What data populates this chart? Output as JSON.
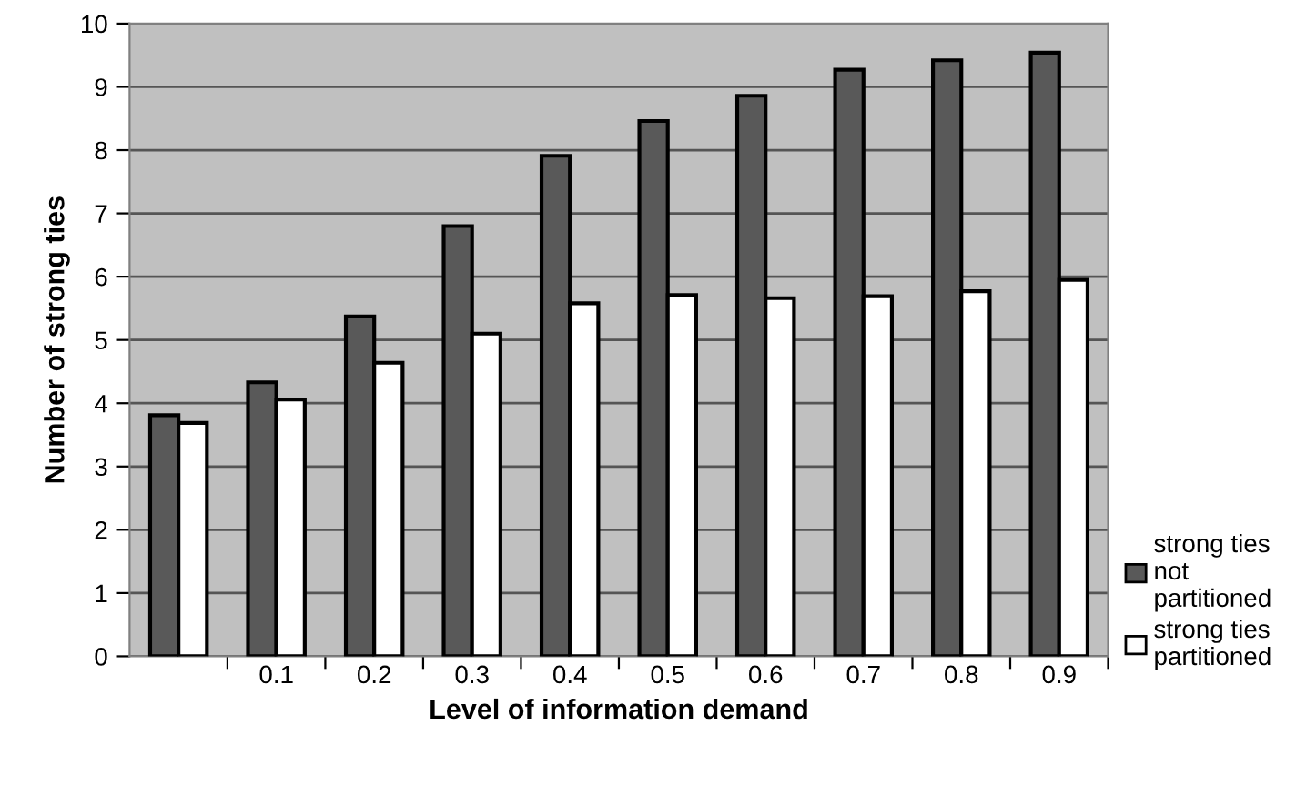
{
  "chart_data": {
    "type": "bar",
    "xlabel": "Level of information demand",
    "ylabel": "Number of strong ties",
    "categories": [
      null,
      "0.1",
      "0.2",
      "0.3",
      "0.4",
      "0.5",
      "0.6",
      "0.7",
      "0.8",
      "0.9"
    ],
    "series": [
      {
        "name": "strong ties\nnot\npartitioned",
        "color": "#595959",
        "values": [
          3.81,
          4.33,
          5.37,
          6.8,
          7.91,
          8.46,
          8.86,
          9.27,
          9.42,
          9.54
        ]
      },
      {
        "name": "strong ties\npartitioned",
        "color": "#ffffff",
        "values": [
          3.69,
          4.06,
          4.64,
          5.1,
          5.58,
          5.71,
          5.66,
          5.69,
          5.77,
          5.95
        ]
      }
    ],
    "ylim": [
      0,
      10
    ],
    "yticks": [
      0,
      1,
      2,
      3,
      4,
      5,
      6,
      7,
      8,
      9,
      10
    ],
    "grid": "y",
    "legend": "bottom right"
  }
}
